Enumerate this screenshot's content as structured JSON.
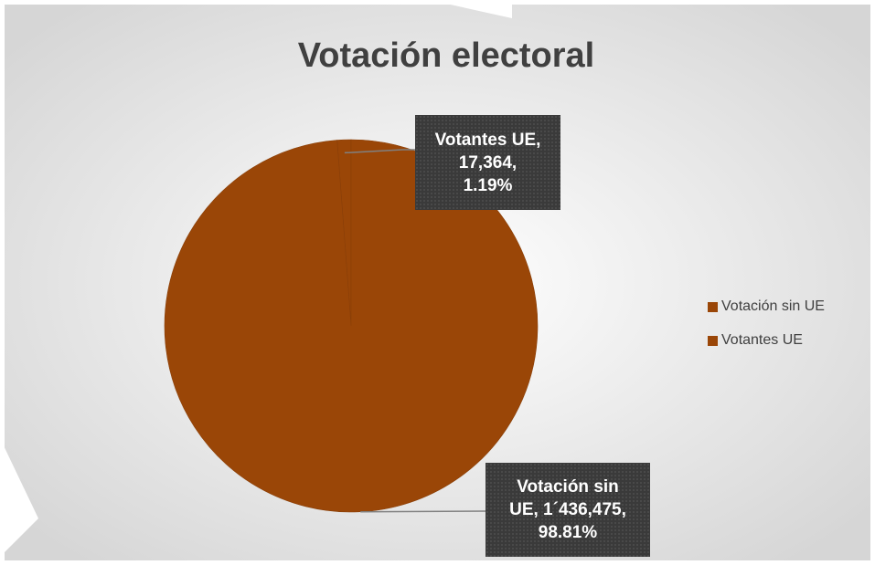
{
  "chart_data": {
    "type": "pie",
    "title": "Votación electoral",
    "slices": [
      {
        "name": "Votación sin UE",
        "value": 1436475,
        "percent": 98.81,
        "color": "#9a4607"
      },
      {
        "name": "Votantes UE",
        "value": 17364,
        "percent": 1.19,
        "color": "#9a4607"
      }
    ],
    "data_labels": [
      {
        "lines": [
          "Votantes UE,",
          "17,364,",
          "1.19%"
        ]
      },
      {
        "lines": [
          "Votación sin",
          "UE, 1´436,475,",
          "98.81%"
        ]
      }
    ],
    "legend": {
      "position": "right",
      "items": [
        "Votación sin UE",
        "Votantes UE"
      ]
    }
  },
  "colors": {
    "slice": "#9a4607",
    "title": "#404040",
    "label_box": "#3a3a3a",
    "leader_line": "#808080"
  }
}
